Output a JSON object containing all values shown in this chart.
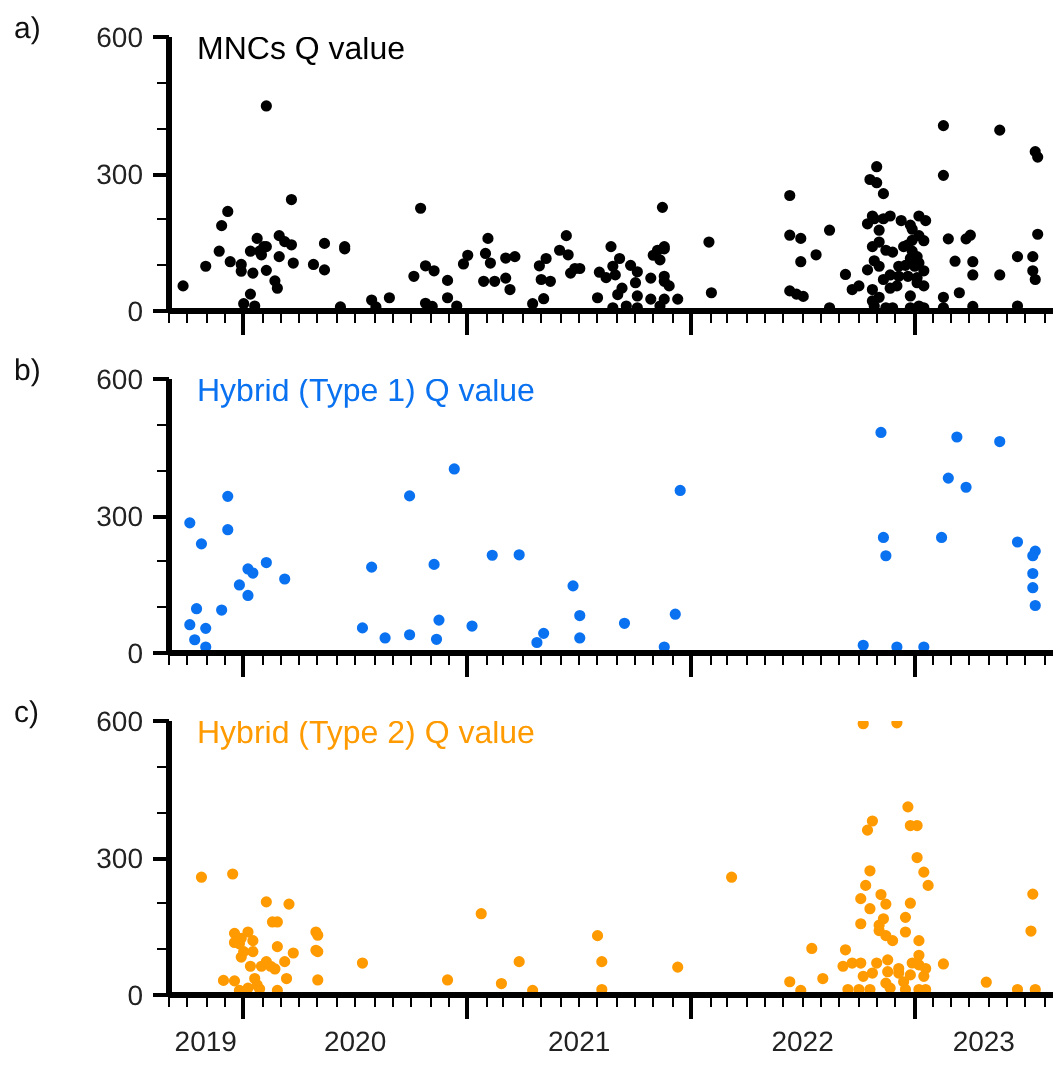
{
  "chart_data": [
    {
      "type": "scatter",
      "title": "MNCs Q value",
      "annotations": [
        "a)"
      ],
      "marker": "circle",
      "tick_labels": "y",
      "xlim": [
        "2019-09-01",
        "2023-08-15"
      ],
      "ylim": [
        0,
        600
      ],
      "yticks": [
        0,
        300,
        600
      ],
      "xticks": [
        {
          "value": "2020-01-01",
          "label": null
        },
        {
          "value": "2021-01-01",
          "label": null
        },
        {
          "value": "2022-01-01",
          "label": null
        },
        {
          "value": "2023-01-01",
          "label": null
        }
      ],
      "series": [
        {
          "color": "#000000",
          "x": [
            "2019-09-24",
            "2019-10-31",
            "2019-11-22",
            "2019-11-26",
            "2019-12-06",
            "2019-12-10",
            "2019-12-28",
            "2019-12-28",
            "2020-01-01",
            "2020-01-12",
            "2020-01-16",
            "2020-01-12",
            "2020-01-23",
            "2020-01-27",
            "2020-01-30",
            "2020-02-03",
            "2020-02-07",
            "2020-02-07",
            "2020-01-19",
            "2020-02-07",
            "2020-02-21",
            "2020-02-25",
            "2020-02-28",
            "2020-03-08",
            "2020-02-28",
            "2020-03-19",
            "2020-03-19",
            "2020-03-22",
            "2020-04-24",
            "2020-05-12",
            "2020-05-12",
            "2020-06-07",
            "2020-06-14",
            "2020-06-14",
            "2020-07-28",
            "2020-08-04",
            "2020-08-26",
            "2020-10-05",
            "2020-10-16",
            "2020-10-24",
            "2020-11-07",
            "2020-10-24",
            "2020-11-04",
            "2020-11-29",
            "2020-11-29",
            "2020-12-14",
            "2020-12-25",
            "2021-01-01",
            "2021-01-30",
            "2021-02-03",
            "2021-02-07",
            "2021-01-27",
            "2021-02-14",
            "2021-03-04",
            "2021-03-04",
            "2021-03-11",
            "2021-03-19",
            "2021-04-17",
            "2021-04-28",
            "2021-05-09",
            "2021-05-05",
            "2021-05-01",
            "2021-05-16",
            "2021-05-31",
            "2021-06-11",
            "2021-06-14",
            "2021-06-18",
            "2021-06-25",
            "2021-07-03",
            "2021-08-01",
            "2021-08-04",
            "2021-08-15",
            "2021-08-23",
            "2021-08-30",
            "2021-09-06",
            "2021-09-03",
            "2021-09-10",
            "2021-08-26",
            "2021-08-26",
            "2021-09-24",
            "2021-09-17",
            "2021-10-02",
            "2021-10-05",
            "2021-10-05",
            "2021-10-05",
            "2021-10-27",
            "2021-10-31",
            "2021-11-07",
            "2021-11-11",
            "2021-11-18",
            "2021-11-18",
            "2021-11-15",
            "2021-11-18",
            "2021-11-18",
            "2021-11-26",
            "2021-10-27",
            "2021-11-11",
            "2021-11-18",
            "2021-12-10",
            "2022-01-30",
            "2022-02-03",
            "2022-06-11",
            "2022-06-11",
            "2022-06-29",
            "2022-06-29",
            "2022-06-11",
            "2022-06-22",
            "2022-07-03",
            "2022-07-24",
            "2022-08-15",
            "2022-08-15",
            "2022-09-10",
            "2022-09-21",
            "2022-10-02",
            "2022-10-16",
            "2022-10-24",
            "2022-10-16",
            "2022-10-24",
            "2022-10-31",
            "2022-10-20",
            "2022-10-31",
            "2022-11-11",
            "2022-10-27",
            "2022-11-04",
            "2022-11-11",
            "2022-11-22",
            "2022-10-24",
            "2022-11-04",
            "2022-11-15",
            "2022-11-26",
            "2022-10-27",
            "2022-11-04",
            "2022-11-11",
            "2022-11-22",
            "2022-12-06",
            "2022-12-10",
            "2022-12-25",
            "2022-12-28",
            "2023-01-08",
            "2023-01-19",
            "2023-01-08",
            "2023-01-16",
            "2022-12-28",
            "2022-12-14",
            "2022-12-21",
            "2022-12-28",
            "2023-01-05",
            "2023-01-08",
            "2022-12-25",
            "2022-12-17",
            "2023-01-01",
            "2023-01-16",
            "2022-12-06",
            "2022-12-21",
            "2023-01-05",
            "2022-10-24",
            "2022-11-04",
            "2022-11-22",
            "2022-12-03",
            "2022-12-25",
            "2023-01-05",
            "2023-01-16",
            "2022-10-27",
            "2022-11-15",
            "2022-11-26",
            "2022-12-25",
            "2023-01-08",
            "2023-01-16",
            "2023-02-17",
            "2023-02-17",
            "2023-02-25",
            "2023-03-08",
            "2023-02-17",
            "2023-03-15",
            "2023-02-17",
            "2023-03-26",
            "2023-04-02",
            "2023-04-06",
            "2023-04-06",
            "2023-04-06",
            "2023-05-20",
            "2023-05-20",
            "2023-06-18",
            "2023-06-18",
            "2023-07-17",
            "2023-07-21",
            "2023-07-21",
            "2023-07-13",
            "2023-07-13",
            "2023-07-17"
          ],
          "values": [
            55,
            98,
            131,
            187,
            218,
            108,
            102,
            87,
            16,
            37,
            83,
            131,
            159,
            131,
            123,
            141,
            141,
            89,
            11,
            449,
            66,
            50,
            165,
            152,
            119,
            244,
            145,
            105,
            102,
            148,
            90,
            9,
            141,
            136,
            24,
            9,
            29,
            76,
            225,
            99,
            88,
            17,
            10,
            67,
            29,
            11,
            103,
            122,
            126,
            159,
            105,
            65,
            65,
            72,
            116,
            47,
            119,
            16,
            99,
            115,
            27,
            69,
            65,
            133,
            165,
            123,
            83,
            93,
            93,
            29,
            85,
            73,
            141,
            79,
            115,
            36,
            50,
            7,
            98,
            100,
            11,
            62,
            33,
            86,
            7,
            72,
            122,
            133,
            112,
            141,
            136,
            227,
            65,
            76,
            55,
            26,
            11,
            26,
            26,
            151,
            40,
            253,
            166,
            159,
            108,
            44,
            37,
            32,
            123,
            177,
            7,
            80,
            47,
            55,
            90,
            22,
            191,
            208,
            316,
            288,
            281,
            257,
            202,
            177,
            202,
            208,
            141,
            151,
            133,
            129,
            110,
            98,
            69,
            79,
            98,
            198,
            188,
            179,
            208,
            198,
            165,
            154,
            155,
            141,
            145,
            131,
            119,
            105,
            115,
            100,
            98,
            88,
            76,
            76,
            73,
            47,
            30,
            50,
            55,
            33,
            62,
            55,
            11,
            7,
            7,
            7,
            11,
            7,
            406,
            297,
            158,
            109,
            30,
            40,
            7,
            158,
            166,
            108,
            79,
            10,
            396,
            79,
            119,
            11,
            349,
            337,
            168,
            119,
            88,
            69
          ]
        }
      ]
    },
    {
      "type": "scatter",
      "title": "Hybrid (Type 1) Q value",
      "annotations": [
        "b)"
      ],
      "marker": "circle",
      "tick_labels": "y",
      "xlim": [
        "2019-09-01",
        "2023-08-15"
      ],
      "ylim": [
        0,
        600
      ],
      "yticks": [
        0,
        300,
        600
      ],
      "xticks": [
        {
          "value": "2020-01-01",
          "label": null
        },
        {
          "value": "2021-01-01",
          "label": null
        },
        {
          "value": "2022-01-01",
          "label": null
        },
        {
          "value": "2023-01-01",
          "label": null
        }
      ],
      "series": [
        {
          "color": "#0a72f0",
          "x": [
            "2019-10-05",
            "2019-10-24",
            "2019-12-06",
            "2019-12-06",
            "2019-10-05",
            "2019-10-13",
            "2019-10-16",
            "2019-10-31",
            "2019-10-31",
            "2019-11-26",
            "2019-12-25",
            "2020-01-08",
            "2020-01-08",
            "2020-01-16",
            "2020-02-07",
            "2020-03-08",
            "2020-07-13",
            "2020-07-28",
            "2020-08-19",
            "2020-09-28",
            "2020-09-28",
            "2020-11-07",
            "2020-11-11",
            "2020-11-15",
            "2020-12-10",
            "2021-01-08",
            "2021-02-10",
            "2021-03-26",
            "2021-04-24",
            "2021-05-05",
            "2021-06-22",
            "2021-07-03",
            "2021-07-03",
            "2021-09-14",
            "2021-11-18",
            "2021-12-06",
            "2021-12-14",
            "2022-10-09",
            "2022-11-07",
            "2022-11-11",
            "2022-11-15",
            "2022-12-03",
            "2023-01-16",
            "2023-02-14",
            "2023-02-25",
            "2023-03-11",
            "2023-03-26",
            "2023-05-20",
            "2023-06-18",
            "2023-07-17",
            "2023-07-13",
            "2023-07-13",
            "2023-07-13",
            "2023-07-17"
          ],
          "values": [
            285,
            239,
            343,
            270,
            62,
            29,
            97,
            54,
            13,
            94,
            149,
            126,
            184,
            175,
            198,
            162,
            55,
            188,
            33,
            344,
            40,
            194,
            30,
            72,
            403,
            59,
            214,
            215,
            23,
            43,
            147,
            82,
            33,
            65,
            13,
            85,
            356,
            17,
            483,
            253,
            213,
            13,
            13,
            253,
            383,
            473,
            363,
            463,
            243,
            223,
            213,
            174,
            143,
            104
          ]
        }
      ]
    },
    {
      "type": "scatter",
      "title": "Hybrid (Type 2) Q value",
      "annotations": [
        "c)"
      ],
      "marker": "circle",
      "xlim": [
        "2019-09-01",
        "2023-08-15"
      ],
      "ylim": [
        0,
        600
      ],
      "yticks": [
        0,
        300,
        600
      ],
      "xticks": [
        {
          "value": "2019-10-31",
          "label": "2019"
        },
        {
          "value": "2020-01-01",
          "label": null
        },
        {
          "value": "2020-07-01",
          "label": "2020"
        },
        {
          "value": "2021-01-01",
          "label": null
        },
        {
          "value": "2021-07-02",
          "label": "2021"
        },
        {
          "value": "2022-01-01",
          "label": null
        },
        {
          "value": "2022-07-02",
          "label": "2022"
        },
        {
          "value": "2023-01-01",
          "label": null
        },
        {
          "value": "2023-04-24",
          "label": "2023"
        }
      ],
      "series": [
        {
          "color": "#ff9a00",
          "x": [
            "2019-10-24",
            "2019-12-14",
            "2019-11-29",
            "2019-12-17",
            "2019-12-17",
            "2019-12-17",
            "2019-12-25",
            "2019-12-28",
            "2019-12-28",
            "2020-01-01",
            "2020-01-08",
            "2020-01-16",
            "2020-01-16",
            "2020-01-12",
            "2019-12-25",
            "2020-01-08",
            "2020-01-19",
            "2020-01-23",
            "2020-01-27",
            "2020-01-30",
            "2020-02-07",
            "2020-02-07",
            "2020-02-14",
            "2020-02-17",
            "2020-02-25",
            "2020-02-25",
            "2020-02-21",
            "2020-02-25",
            "2020-03-08",
            "2020-03-11",
            "2020-03-15",
            "2020-03-22",
            "2020-04-28",
            "2020-05-01",
            "2020-04-28",
            "2020-05-01",
            "2020-05-01",
            "2020-07-13",
            "2020-11-29",
            "2021-01-23",
            "2021-02-25",
            "2021-03-26",
            "2021-04-17",
            "2021-08-01",
            "2021-08-08",
            "2021-08-08",
            "2021-12-10",
            "2022-03-08",
            "2022-06-11",
            "2022-06-29",
            "2022-07-17",
            "2022-08-04",
            "2022-09-10",
            "2022-09-06",
            "2022-09-21",
            "2022-09-14",
            "2022-10-02",
            "2022-10-05",
            "2022-10-09",
            "2022-10-09",
            "2022-12-03",
            "2022-10-05",
            "2022-10-05",
            "2022-10-13",
            "2022-10-16",
            "2022-10-20",
            "2022-10-24",
            "2022-10-20",
            "2022-10-24",
            "2022-10-20",
            "2022-10-31",
            "2022-11-04",
            "2022-11-04",
            "2022-11-07",
            "2022-11-11",
            "2022-11-15",
            "2022-11-15",
            "2022-11-26",
            "2022-11-18",
            "2022-11-18",
            "2022-11-15",
            "2022-11-22",
            "2022-12-06",
            "2022-12-06",
            "2022-12-14",
            "2022-12-17",
            "2022-12-17",
            "2022-12-17",
            "2022-12-25",
            "2022-12-21",
            "2022-12-25",
            "2023-01-05",
            "2023-01-05",
            "2023-01-16",
            "2023-01-23",
            "2023-01-08",
            "2023-01-08",
            "2023-01-08",
            "2023-01-19",
            "2023-01-16",
            "2023-01-19",
            "2023-01-08",
            "2022-12-28",
            "2022-12-25",
            "2023-02-17",
            "2023-04-28",
            "2023-06-18",
            "2023-07-17",
            "2023-07-10",
            "2023-07-13"
          ],
          "values": [
            258,
            265,
            32,
            31,
            135,
            115,
            112,
            124,
            83,
            95,
            138,
            119,
            95,
            63,
            10,
            15,
            36,
            22,
            13,
            63,
            204,
            73,
            63,
            160,
            160,
            106,
            57,
            10,
            73,
            36,
            199,
            92,
            138,
            131,
            98,
            95,
            33,
            70,
            33,
            178,
            25,
            73,
            10,
            130,
            73,
            12,
            61,
            258,
            29,
            10,
            102,
            36,
            99,
            63,
            70,
            12,
            12,
            70,
            41,
            594,
            596,
            156,
            211,
            240,
            361,
            272,
            381,
            189,
            48,
            12,
            70,
            153,
            141,
            220,
            167,
            199,
            130,
            119,
            77,
            51,
            26,
            15,
            58,
            48,
            29,
            12,
            138,
            170,
            201,
            412,
            371,
            371,
            301,
            269,
            240,
            119,
            87,
            66,
            58,
            41,
            12,
            12,
            70,
            44,
            68,
            28,
            12,
            12,
            140,
            221
          ]
        }
      ]
    }
  ]
}
